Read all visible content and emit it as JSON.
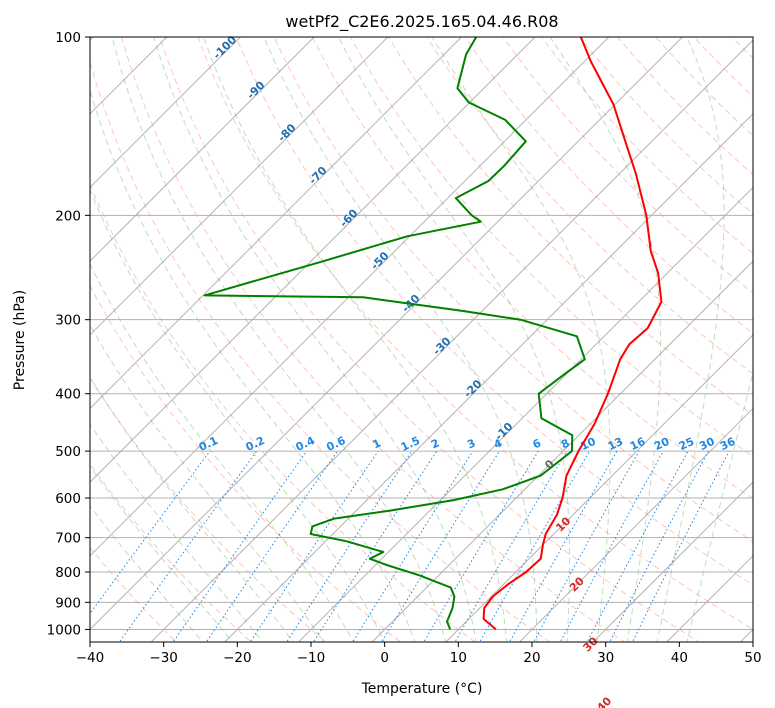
{
  "chart_data": {
    "type": "line",
    "title": "wetPf2_C2E6.2025.165.04.46.R08",
    "xlabel": "Temperature (°C)",
    "ylabel": "Pressure (hPa)",
    "xlim": [
      -40,
      50
    ],
    "ylim": [
      1050,
      100
    ],
    "y_scale": "log",
    "x_ticks": [
      -40,
      -30,
      -20,
      -10,
      0,
      10,
      20,
      30,
      40,
      50
    ],
    "y_ticks": [
      100,
      200,
      300,
      400,
      500,
      600,
      700,
      800,
      900,
      1000
    ],
    "skew": 45,
    "grid": true,
    "series": [
      {
        "key": "temperature",
        "color": "#ff0000",
        "points": [
          [
            15.1,
            1000
          ],
          [
            12.0,
            960
          ],
          [
            10.6,
            920
          ],
          [
            10.2,
            880
          ],
          [
            10.6,
            840
          ],
          [
            11.4,
            800
          ],
          [
            11.6,
            760
          ],
          [
            10.0,
            720
          ],
          [
            8.9,
            690
          ],
          [
            7.8,
            640
          ],
          [
            6.3,
            600
          ],
          [
            3.8,
            550
          ],
          [
            2.1,
            500
          ],
          [
            0.6,
            450
          ],
          [
            -1.7,
            400
          ],
          [
            -4.7,
            350
          ],
          [
            -5.5,
            330
          ],
          [
            -5.2,
            310
          ],
          [
            -6.9,
            280
          ],
          [
            -11.3,
            250
          ],
          [
            -15.2,
            230
          ],
          [
            -20.7,
            200
          ],
          [
            -27.8,
            170
          ],
          [
            -33.6,
            150
          ],
          [
            -40.2,
            130
          ],
          [
            -49.1,
            110
          ],
          [
            -53.8,
            100
          ]
        ]
      },
      {
        "key": "dewpoint",
        "color": "#008000",
        "points": [
          [
            8.9,
            1000
          ],
          [
            7.4,
            970
          ],
          [
            6.3,
            920
          ],
          [
            5.0,
            880
          ],
          [
            3.3,
            850
          ],
          [
            -2.7,
            810
          ],
          [
            -8.2,
            780
          ],
          [
            -11.6,
            760
          ],
          [
            -10.7,
            740
          ],
          [
            -17.1,
            710
          ],
          [
            -23.0,
            690
          ],
          [
            -23.8,
            670
          ],
          [
            -21.9,
            650
          ],
          [
            -15.4,
            630
          ],
          [
            -8.2,
            605
          ],
          [
            -3.0,
            580
          ],
          [
            0.3,
            550
          ],
          [
            1.2,
            500
          ],
          [
            -0.9,
            470
          ],
          [
            -7.4,
            440
          ],
          [
            -11.1,
            400
          ],
          [
            -10.2,
            370
          ],
          [
            -9.5,
            350
          ],
          [
            -13.7,
            320
          ],
          [
            -23.6,
            300
          ],
          [
            -32.7,
            290
          ],
          [
            -48.0,
            275
          ],
          [
            -69.8,
            273
          ],
          [
            -58.7,
            240
          ],
          [
            -50.3,
            217
          ],
          [
            -42.3,
            205
          ],
          [
            -44.4,
            200
          ],
          [
            -48.9,
            187
          ],
          [
            -46.8,
            175
          ],
          [
            -46.7,
            165
          ],
          [
            -47.1,
            150
          ],
          [
            -52.8,
            138
          ],
          [
            -60.1,
            129
          ],
          [
            -63.6,
            122
          ],
          [
            -67.0,
            107
          ],
          [
            -68.0,
            100
          ]
        ]
      }
    ],
    "isotherm_labels": [
      "-100",
      "-90",
      "-80",
      "-70",
      "-60",
      "-50",
      "-40",
      "-30",
      "-20",
      "-10"
    ],
    "mixing_ratio_labels": [
      "0.1",
      "0.2",
      "0.4",
      "0.6",
      "1",
      "1.5",
      "2",
      "3",
      "4",
      "6",
      "8",
      "10",
      "13",
      "16",
      "20",
      "25",
      "30",
      "36"
    ],
    "isotherm_value_labels": [
      "0",
      "10",
      "20",
      "30",
      "40"
    ]
  }
}
